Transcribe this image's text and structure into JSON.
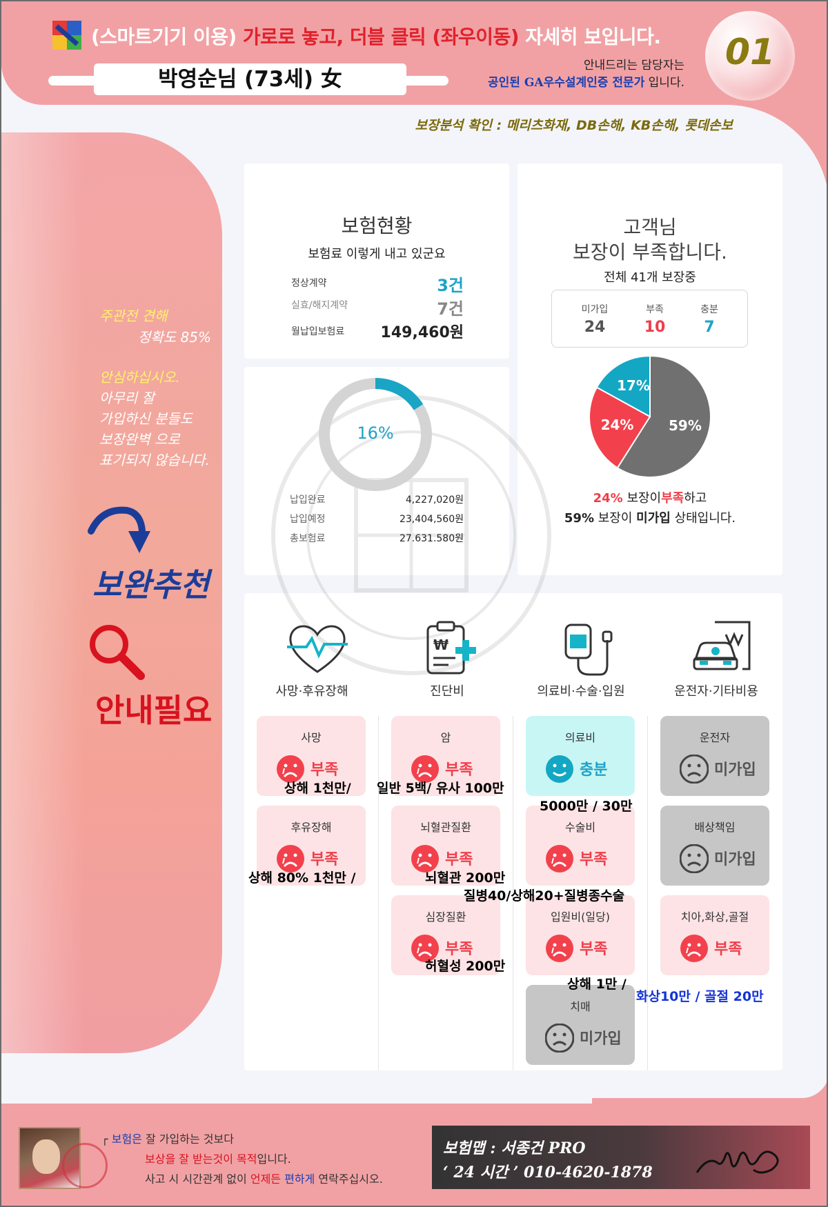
{
  "header": {
    "headline_prefix": "(스마트기기 이용)",
    "headline_red": "가로로 놓고, 더블 클릭 (좌우이동)",
    "headline_suffix": "자세히 보입니다.",
    "customer_name": "박영순님 (73세) 女",
    "page_number": "01",
    "manager_line1": "안내드리는 담당자는",
    "manager_line2_blue": "공인된 GA우수설계인증 전문가",
    "manager_line2_suffix": "입니다.",
    "insurers": "보장분석 확인 : 메리츠화재, DB손해, KB손해, 롯데손보"
  },
  "sidebar": {
    "opinion_title": "주관전 견해",
    "opinion_value": "정확도 85%",
    "reassure_title": "안심하십시오.",
    "reassure_lines": [
      "아무리 잘",
      "가입하신 분들도",
      "보장완벽 으로",
      "표기되지 않습니다."
    ],
    "recommend": "보완추천",
    "guide": "안내필요"
  },
  "insurance_status": {
    "title": "보험현황",
    "subtitle": "보험료 이렇게 내고 있군요",
    "normal_label": "정상계약",
    "normal_value": "3건",
    "lapsed_label": "실효/해지계약",
    "lapsed_value": "7건",
    "monthly_label": "월납입보험료",
    "monthly_value": "149,460원"
  },
  "payment": {
    "percent_label": "16%",
    "percent_value": 16,
    "paid_label": "납입완료",
    "paid_value": "4,227,020원",
    "planned_label": "납입예정",
    "planned_value": "23,404,560원",
    "total_label": "총보험료",
    "total_value": "27.631.580원"
  },
  "coverage": {
    "title_line1": "고객님",
    "title_line2": "보장이 부족합니다.",
    "subtitle": "전체 41개 보장중",
    "none_label": "미가입",
    "none_value": "24",
    "lack_label": "부족",
    "lack_value": "10",
    "enough_label": "충분",
    "enough_value": "7",
    "summary1_pct": "24%",
    "summary1_mid": "보장이",
    "summary1_red": "부족",
    "summary1_end": "하고",
    "summary2_pct": "59%",
    "summary2_mid": "보장이",
    "summary2_bold": "미가입",
    "summary2_end": "상태입니다."
  },
  "chart_data": {
    "type": "pie",
    "categories": [
      "미가입",
      "부족",
      "충분"
    ],
    "values": [
      59,
      24,
      17
    ],
    "labels": [
      "59%",
      "24%",
      "17%"
    ],
    "colors": [
      "#707070",
      "#f2414c",
      "#13a7c4"
    ]
  },
  "colors": {
    "pink_band": "#f1a1a4",
    "accent_blue": "#1fa3c6",
    "accent_red": "#ef3e4a",
    "gray": "#707070"
  },
  "categories": [
    {
      "label": "사망·후유장해",
      "icon": "heartbeat-icon"
    },
    {
      "label": "진단비",
      "icon": "clipboard-icon"
    },
    {
      "label": "의료비·수술·입원",
      "icon": "iv-bag-icon"
    },
    {
      "label": "운전자·기타비용",
      "icon": "car-document-icon"
    }
  ],
  "tiles": {
    "death": {
      "name": "사망",
      "status": "부족"
    },
    "disability": {
      "name": "후유장해",
      "status": "부족"
    },
    "cancer": {
      "name": "암",
      "status": "부족"
    },
    "stroke": {
      "name": "뇌혈관질환",
      "status": "부족"
    },
    "heart": {
      "name": "심장질환",
      "status": "부족"
    },
    "medical": {
      "name": "의료비",
      "status": "충분"
    },
    "surgery": {
      "name": "수술비",
      "status": "부족"
    },
    "hospital": {
      "name": "입원비(일당)",
      "status": "부족"
    },
    "dementia": {
      "name": "치매",
      "status": "미가입"
    },
    "driver": {
      "name": "운전자",
      "status": "미가입"
    },
    "liability": {
      "name": "배상책임",
      "status": "미가입"
    },
    "dental": {
      "name": "치아,화상,골절",
      "status": "부족"
    }
  },
  "notes": {
    "death": "상해 1천만/",
    "disability": "상해 80% 1천만 /",
    "cancer": "일반 5백/ 유사 100만",
    "stroke": "뇌혈관 200만",
    "heart": "허혈성 200만",
    "medical": "5000만 / 30만",
    "surgery": "질병40/상해20+질병종수술",
    "hospital": "상해 1만 /",
    "dental": "화상10만 / 골절 20만"
  },
  "footer": {
    "line1_blue": "보험은",
    "line1_end": "잘 가입하는 것보다",
    "line2_red": "보상을 잘 받는것이 목적",
    "line2_end": "입니다.",
    "line3_a": "사고 시 시간관계 없이",
    "line3_red": "언제든",
    "line3_blue": "편하게",
    "line3_end": "연락주십시오.",
    "contact_name": "보험맵 : 서종건 PRO",
    "contact_phone": "‘ 24 시간 ’ 010-4620-1878"
  }
}
